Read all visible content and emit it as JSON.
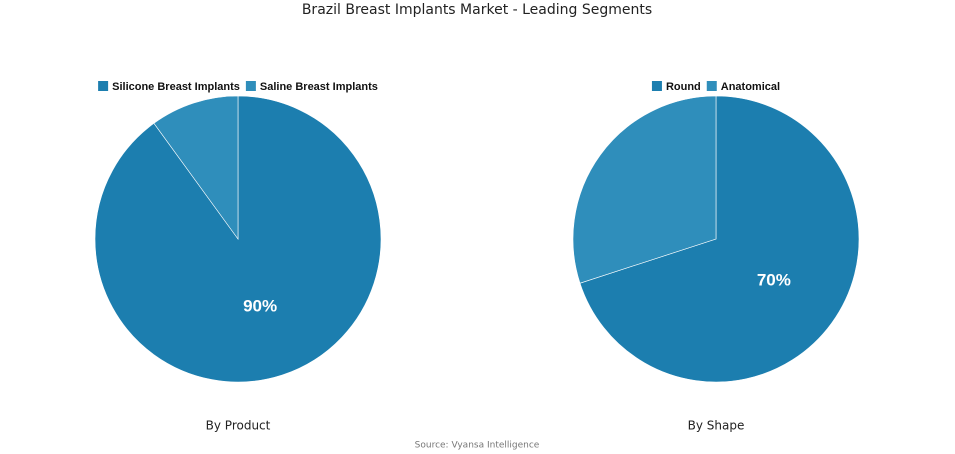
{
  "title": "Brazil Breast Implants Market - Leading Segments",
  "source": "Source: Vyansa Intelligence",
  "chart_data": [
    {
      "type": "pie",
      "title": "By Product",
      "categories": [
        "Silicone Breast Implants",
        "Saline Breast Implants"
      ],
      "values": [
        90,
        10
      ],
      "value_labels": [
        "90%",
        null
      ],
      "colors": [
        "#1c7eaf",
        "#2f8ebb"
      ]
    },
    {
      "type": "pie",
      "title": "By Shape",
      "categories": [
        "Round",
        "Anatomical"
      ],
      "values": [
        70,
        30
      ],
      "value_labels": [
        "70%",
        null
      ],
      "colors": [
        "#1c7eaf",
        "#2f8ebb"
      ]
    }
  ]
}
